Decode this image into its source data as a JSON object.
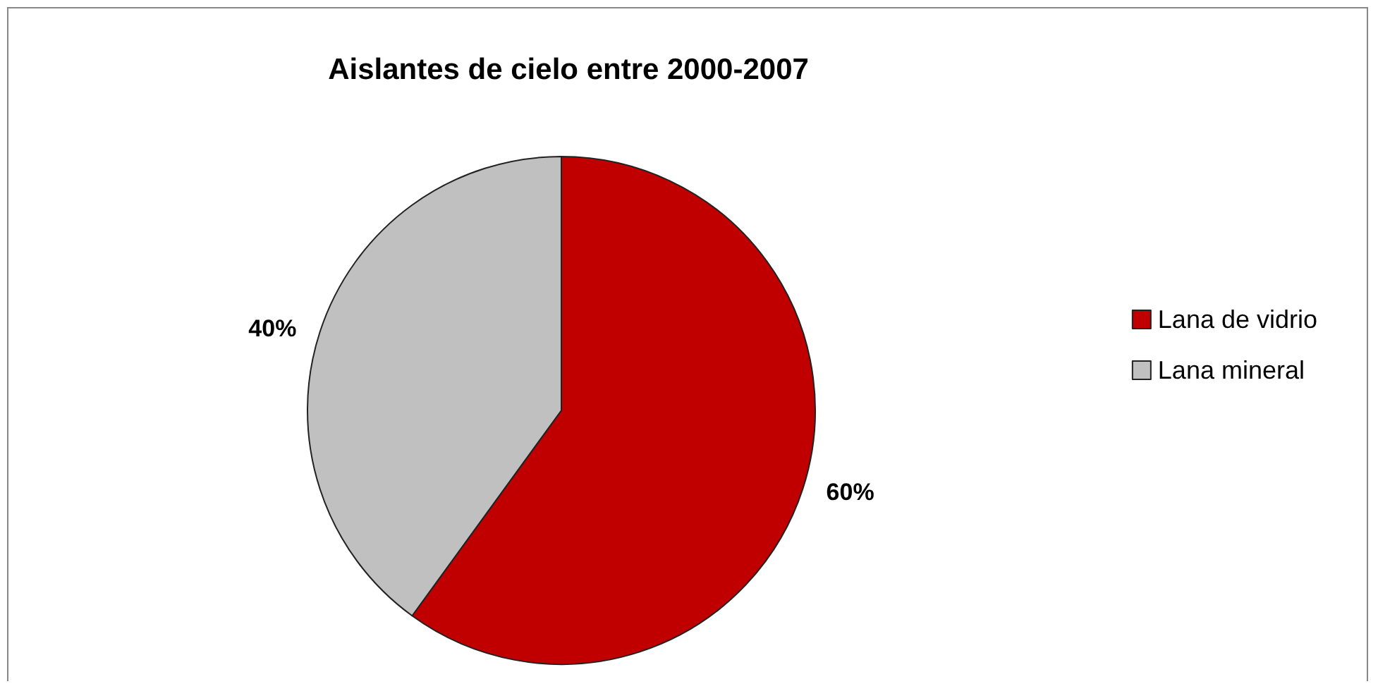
{
  "chart_data": {
    "type": "pie",
    "title": "Aislantes de cielo entre 2000-2007",
    "categories": [
      "Lana de vidrio",
      "Lana mineral"
    ],
    "values": [
      60,
      40
    ],
    "colors": [
      "#c00000",
      "#c0c0c0"
    ],
    "value_labels": [
      "60%",
      "40%"
    ],
    "legend": "right"
  }
}
